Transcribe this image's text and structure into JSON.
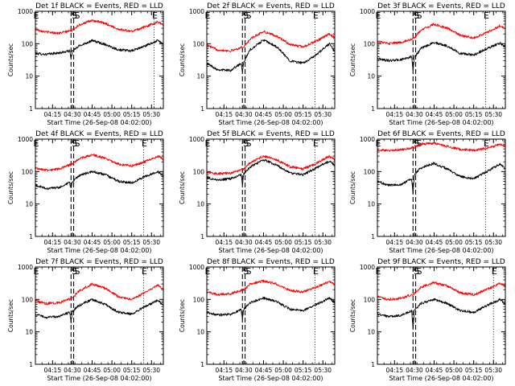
{
  "figure": {
    "background": "#ffffff",
    "axis_color": "#000000"
  },
  "chart_data": [
    {
      "type": "line",
      "title": "Det 1f BLACK = Events, RED = LLD",
      "xlabel": "Start Time (26-Sep-08 04:02:00)",
      "ylabel": "Counts/sec",
      "yscale": "log",
      "ylim": [
        1,
        1000
      ],
      "xlim_minutes": [
        0,
        97
      ],
      "x_ticks": [
        "04:15",
        "04:30",
        "04:45",
        "05:00",
        "05:15",
        "05:30"
      ],
      "y_ticks": [
        "1",
        "10",
        "100",
        "1000"
      ],
      "markers": [
        {
          "label": "E",
          "style": "dotted",
          "x": "04:02"
        },
        {
          "label": "S",
          "style": "dashed",
          "x": "04:29"
        },
        {
          "label": "S",
          "style": "dashed",
          "x": "04:31"
        },
        {
          "label": "E",
          "style": "dotted",
          "x": "05:32"
        }
      ],
      "series": [
        {
          "color": "#000000",
          "x": [
            "04:02",
            "04:10",
            "04:20",
            "04:28",
            "04:29",
            "04:30",
            "04:35",
            "04:45",
            "04:55",
            "05:05",
            "05:15",
            "05:25",
            "05:35",
            "05:39"
          ],
          "values": [
            50,
            47,
            52,
            60,
            35,
            58,
            85,
            125,
            95,
            65,
            60,
            85,
            125,
            95
          ]
        },
        {
          "color": "#ff0000",
          "x": [
            "04:02",
            "04:10",
            "04:20",
            "04:30",
            "04:35",
            "04:45",
            "04:55",
            "05:05",
            "05:15",
            "05:25",
            "05:35",
            "05:39"
          ],
          "values": [
            280,
            230,
            210,
            260,
            380,
            520,
            420,
            280,
            240,
            330,
            470,
            380
          ]
        }
      ]
    },
    {
      "type": "line",
      "title": "Det 2f BLACK = Events, RED = LLD",
      "xlabel": "Start Time (26-Sep-08 04:02:00)",
      "ylabel": "Counts/sec",
      "yscale": "log",
      "ylim": [
        1,
        1000
      ],
      "xlim_minutes": [
        0,
        97
      ],
      "x_ticks": [
        "04:15",
        "04:30",
        "04:45",
        "05:00",
        "05:15",
        "05:30"
      ],
      "y_ticks": [
        "1",
        "10",
        "100",
        "1000"
      ],
      "markers": [
        {
          "label": "E",
          "style": "dotted",
          "x": "04:02"
        },
        {
          "label": "S",
          "style": "dashed",
          "x": "04:29"
        },
        {
          "label": "S",
          "style": "dashed",
          "x": "04:31"
        },
        {
          "label": "E",
          "style": "dotted",
          "x": "05:24"
        }
      ],
      "series": [
        {
          "color": "#000000",
          "x": [
            "04:02",
            "04:10",
            "04:20",
            "04:28",
            "04:29",
            "04:30",
            "04:35",
            "04:45",
            "04:55",
            "05:05",
            "05:15",
            "05:25",
            "05:35",
            "05:39"
          ],
          "values": [
            25,
            16,
            15,
            25,
            14,
            28,
            65,
            130,
            80,
            30,
            25,
            45,
            100,
            55
          ]
        },
        {
          "color": "#ff0000",
          "x": [
            "04:02",
            "04:10",
            "04:20",
            "04:30",
            "04:35",
            "04:45",
            "04:55",
            "05:05",
            "05:15",
            "05:25",
            "05:35",
            "05:39"
          ],
          "values": [
            90,
            65,
            60,
            80,
            140,
            240,
            170,
            95,
            80,
            120,
            200,
            150
          ]
        }
      ]
    },
    {
      "type": "line",
      "title": "Det 3f BLACK = Events, RED = LLD",
      "xlabel": "Start Time (26-Sep-08 04:02:00)",
      "ylabel": "Counts/sec",
      "yscale": "log",
      "ylim": [
        1,
        1000
      ],
      "xlim_minutes": [
        0,
        97
      ],
      "x_ticks": [
        "04:15",
        "04:30",
        "04:45",
        "05:00",
        "05:15",
        "05:30"
      ],
      "y_ticks": [
        "1",
        "10",
        "100",
        "1000"
      ],
      "markers": [
        {
          "label": "E",
          "style": "dotted",
          "x": "04:02"
        },
        {
          "label": "S",
          "style": "dashed",
          "x": "04:29"
        },
        {
          "label": "S",
          "style": "dashed",
          "x": "04:31"
        },
        {
          "label": "E",
          "style": "dotted",
          "x": "05:24"
        }
      ],
      "series": [
        {
          "color": "#000000",
          "x": [
            "04:02",
            "04:10",
            "04:20",
            "04:28",
            "04:29",
            "04:30",
            "04:35",
            "04:45",
            "04:55",
            "05:05",
            "05:15",
            "05:25",
            "05:35",
            "05:39"
          ],
          "values": [
            35,
            30,
            32,
            40,
            15,
            38,
            70,
            110,
            85,
            50,
            45,
            70,
            105,
            80
          ]
        },
        {
          "color": "#ff0000",
          "x": [
            "04:02",
            "04:10",
            "04:20",
            "04:30",
            "04:35",
            "04:45",
            "04:55",
            "05:05",
            "05:15",
            "05:25",
            "05:35",
            "05:39"
          ],
          "values": [
            120,
            100,
            110,
            150,
            260,
            400,
            300,
            180,
            150,
            220,
            360,
            280
          ]
        }
      ]
    },
    {
      "type": "line",
      "title": "Det 4f BLACK = Events, RED = LLD",
      "xlabel": "Start Time (26-Sep-08 04:02:00)",
      "ylabel": "Counts/sec",
      "yscale": "log",
      "ylim": [
        1,
        1000
      ],
      "xlim_minutes": [
        0,
        97
      ],
      "x_ticks": [
        "04:15",
        "04:30",
        "04:45",
        "05:00",
        "05:15",
        "05:30"
      ],
      "y_ticks": [
        "1",
        "10",
        "100",
        "1000"
      ],
      "markers": [
        {
          "label": "E",
          "style": "dotted",
          "x": "04:02"
        },
        {
          "label": "S",
          "style": "dashed",
          "x": "04:29"
        },
        {
          "label": "S",
          "style": "dashed",
          "x": "04:31"
        },
        {
          "label": "E",
          "style": "dotted",
          "x": "05:24"
        }
      ],
      "series": [
        {
          "color": "#000000",
          "x": [
            "04:02",
            "04:10",
            "04:20",
            "04:28",
            "04:29",
            "04:30",
            "04:35",
            "04:45",
            "04:55",
            "05:05",
            "05:15",
            "05:25",
            "05:35",
            "05:39"
          ],
          "values": [
            38,
            30,
            32,
            45,
            30,
            48,
            75,
            100,
            80,
            50,
            45,
            70,
            100,
            70
          ]
        },
        {
          "color": "#ff0000",
          "x": [
            "04:02",
            "04:10",
            "04:20",
            "04:30",
            "04:35",
            "04:45",
            "04:55",
            "05:05",
            "05:15",
            "05:25",
            "05:35",
            "05:39"
          ],
          "values": [
            130,
            110,
            120,
            170,
            250,
            330,
            260,
            170,
            150,
            200,
            300,
            240
          ]
        }
      ]
    },
    {
      "type": "line",
      "title": "Det 5f BLACK = Events, RED = LLD",
      "xlabel": "Start Time (26-Sep-08 04:02:00)",
      "ylabel": "Counts/sec",
      "yscale": "log",
      "ylim": [
        1,
        1000
      ],
      "xlim_minutes": [
        0,
        97
      ],
      "x_ticks": [
        "04:15",
        "04:30",
        "04:45",
        "05:00",
        "05:15",
        "05:30"
      ],
      "y_ticks": [
        "1",
        "10",
        "100",
        "1000"
      ],
      "markers": [
        {
          "label": "E",
          "style": "dotted",
          "x": "04:02"
        },
        {
          "label": "S",
          "style": "dashed",
          "x": "04:29"
        },
        {
          "label": "S",
          "style": "dashed",
          "x": "04:31"
        },
        {
          "label": "E",
          "style": "dotted",
          "x": "05:24"
        }
      ],
      "series": [
        {
          "color": "#000000",
          "x": [
            "04:02",
            "04:10",
            "04:20",
            "04:28",
            "04:29",
            "04:30",
            "04:35",
            "04:45",
            "04:55",
            "05:05",
            "05:15",
            "05:25",
            "05:35",
            "05:39"
          ],
          "values": [
            65,
            55,
            60,
            80,
            40,
            85,
            140,
            230,
            160,
            90,
            80,
            130,
            210,
            150
          ]
        },
        {
          "color": "#ff0000",
          "x": [
            "04:02",
            "04:10",
            "04:20",
            "04:30",
            "04:35",
            "04:45",
            "04:55",
            "05:05",
            "05:15",
            "05:25",
            "05:35",
            "05:39"
          ],
          "values": [
            100,
            85,
            90,
            120,
            190,
            300,
            230,
            140,
            120,
            180,
            300,
            230
          ]
        }
      ]
    },
    {
      "type": "line",
      "title": "Det 6f BLACK = Events, RED = LLD",
      "xlabel": "Start Time (26-Sep-08 04:02:00)",
      "ylabel": "Counts/sec",
      "yscale": "log",
      "ylim": [
        1,
        1000
      ],
      "xlim_minutes": [
        0,
        97
      ],
      "x_ticks": [
        "04:15",
        "04:30",
        "04:45",
        "05:00",
        "05:15",
        "05:30"
      ],
      "y_ticks": [
        "1",
        "10",
        "100",
        "1000"
      ],
      "markers": [
        {
          "label": "E",
          "style": "dotted",
          "x": "04:02"
        },
        {
          "label": "S",
          "style": "dashed",
          "x": "04:29"
        },
        {
          "label": "S",
          "style": "dashed",
          "x": "04:31"
        },
        {
          "label": "E",
          "style": "dotted",
          "x": "05:24"
        }
      ],
      "series": [
        {
          "color": "#000000",
          "x": [
            "04:02",
            "04:10",
            "04:20",
            "04:28",
            "04:29",
            "04:30",
            "04:35",
            "04:45",
            "04:55",
            "05:05",
            "05:15",
            "05:25",
            "05:35",
            "05:39"
          ],
          "values": [
            50,
            38,
            40,
            60,
            20,
            80,
            130,
            180,
            120,
            70,
            60,
            100,
            170,
            120
          ]
        },
        {
          "color": "#ff0000",
          "x": [
            "04:02",
            "04:10",
            "04:20",
            "04:30",
            "04:35",
            "04:45",
            "04:55",
            "05:05",
            "05:15",
            "05:25",
            "05:35",
            "05:39"
          ],
          "values": [
            450,
            450,
            470,
            550,
            700,
            750,
            600,
            480,
            450,
            520,
            680,
            600
          ]
        }
      ]
    },
    {
      "type": "line",
      "title": "Det 7f BLACK = Events, RED = LLD",
      "xlabel": "Start Time (26-Sep-08 04:02:00)",
      "ylabel": "Counts/sec",
      "yscale": "log",
      "ylim": [
        1,
        1000
      ],
      "xlim_minutes": [
        0,
        97
      ],
      "x_ticks": [
        "04:15",
        "04:30",
        "04:45",
        "05:00",
        "05:15",
        "05:30"
      ],
      "y_ticks": [
        "1",
        "10",
        "100",
        "1000"
      ],
      "markers": [
        {
          "label": "E",
          "style": "dotted",
          "x": "04:02"
        },
        {
          "label": "S",
          "style": "dashed",
          "x": "04:29"
        },
        {
          "label": "S",
          "style": "dashed",
          "x": "04:31"
        },
        {
          "label": "E",
          "style": "dotted",
          "x": "05:24"
        }
      ],
      "series": [
        {
          "color": "#000000",
          "x": [
            "04:02",
            "04:10",
            "04:20",
            "04:28",
            "04:29",
            "04:30",
            "04:35",
            "04:45",
            "04:55",
            "05:05",
            "05:15",
            "05:25",
            "05:35",
            "05:39"
          ],
          "values": [
            35,
            28,
            30,
            40,
            20,
            42,
            65,
            100,
            70,
            40,
            35,
            60,
            95,
            65
          ]
        },
        {
          "color": "#ff0000",
          "x": [
            "04:02",
            "04:10",
            "04:20",
            "04:30",
            "04:35",
            "04:45",
            "04:55",
            "05:05",
            "05:15",
            "05:25",
            "05:35",
            "05:39"
          ],
          "values": [
            90,
            75,
            80,
            110,
            180,
            300,
            220,
            120,
            100,
            160,
            280,
            200
          ]
        }
      ]
    },
    {
      "type": "line",
      "title": "Det 8f BLACK = Events, RED = LLD",
      "xlabel": "Start Time (26-Sep-08 04:02:00)",
      "ylabel": "Counts/sec",
      "yscale": "log",
      "ylim": [
        1,
        1000
      ],
      "xlim_minutes": [
        0,
        97
      ],
      "x_ticks": [
        "04:15",
        "04:30",
        "04:45",
        "05:00",
        "05:15",
        "05:30"
      ],
      "y_ticks": [
        "1",
        "10",
        "100",
        "1000"
      ],
      "markers": [
        {
          "label": "E",
          "style": "dotted",
          "x": "04:02"
        },
        {
          "label": "S",
          "style": "dashed",
          "x": "04:29"
        },
        {
          "label": "S",
          "style": "dashed",
          "x": "04:31"
        },
        {
          "label": "E",
          "style": "dotted",
          "x": "05:24"
        }
      ],
      "series": [
        {
          "color": "#000000",
          "x": [
            "04:02",
            "04:10",
            "04:20",
            "04:28",
            "04:29",
            "04:30",
            "04:35",
            "04:45",
            "04:55",
            "05:05",
            "05:15",
            "05:25",
            "05:35",
            "05:39"
          ],
          "values": [
            40,
            33,
            35,
            48,
            25,
            50,
            80,
            110,
            85,
            50,
            45,
            70,
            110,
            80
          ]
        },
        {
          "color": "#ff0000",
          "x": [
            "04:02",
            "04:10",
            "04:20",
            "04:30",
            "04:35",
            "04:45",
            "04:55",
            "05:05",
            "05:15",
            "05:25",
            "05:35",
            "05:39"
          ],
          "values": [
            170,
            140,
            150,
            200,
            300,
            370,
            300,
            190,
            170,
            240,
            350,
            280
          ]
        }
      ]
    },
    {
      "type": "line",
      "title": "Det 9f BLACK = Events, RED = LLD",
      "xlabel": "Start Time (26-Sep-08 04:02:00)",
      "ylabel": "Counts/sec",
      "yscale": "log",
      "ylim": [
        1,
        1000
      ],
      "xlim_minutes": [
        0,
        97
      ],
      "x_ticks": [
        "04:15",
        "04:30",
        "04:45",
        "05:00",
        "05:15",
        "05:30"
      ],
      "y_ticks": [
        "1",
        "10",
        "100",
        "1000"
      ],
      "markers": [
        {
          "label": "E",
          "style": "dotted",
          "x": "04:02"
        },
        {
          "label": "S",
          "style": "dashed",
          "x": "04:29"
        },
        {
          "label": "S",
          "style": "dashed",
          "x": "04:31"
        },
        {
          "label": "E",
          "style": "dotted",
          "x": "05:30"
        }
      ],
      "series": [
        {
          "color": "#000000",
          "x": [
            "04:02",
            "04:10",
            "04:20",
            "04:28",
            "04:29",
            "04:30",
            "04:35",
            "04:45",
            "04:55",
            "05:05",
            "05:15",
            "05:25",
            "05:35",
            "05:39"
          ],
          "values": [
            35,
            30,
            32,
            45,
            12,
            45,
            75,
            100,
            75,
            45,
            40,
            65,
            100,
            70
          ]
        },
        {
          "color": "#ff0000",
          "x": [
            "04:02",
            "04:10",
            "04:20",
            "04:30",
            "04:35",
            "04:45",
            "04:55",
            "05:05",
            "05:15",
            "05:25",
            "05:35",
            "05:39"
          ],
          "values": [
            120,
            100,
            110,
            150,
            240,
            330,
            260,
            160,
            140,
            200,
            320,
            250
          ]
        }
      ]
    }
  ]
}
